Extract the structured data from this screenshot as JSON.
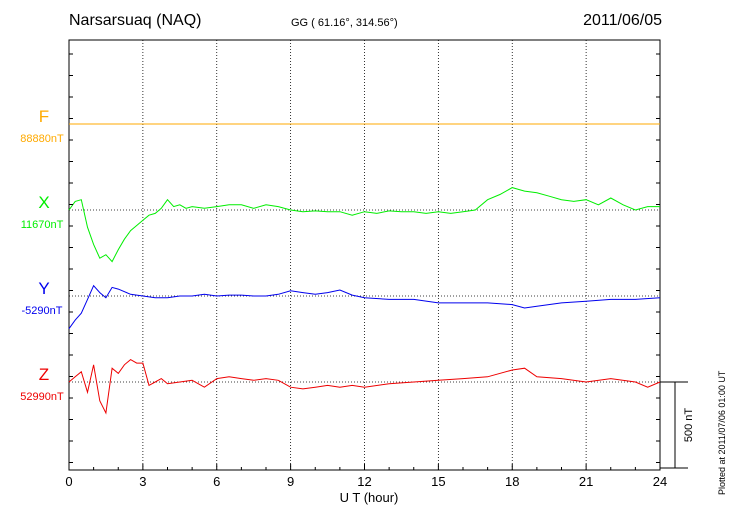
{
  "header": {
    "station": "Narsarsuaq (NAQ)",
    "coords": "GG ( 61.16°, 314.56°)",
    "date": "2011/06/05"
  },
  "footer": {
    "plotted": "Plotted at 2011/07/06 01:00 UT"
  },
  "chart_data": {
    "type": "line",
    "title": "Narsarsuaq (NAQ)",
    "xlabel": "U T (hour)",
    "xlim": [
      0,
      24
    ],
    "xticks": [
      "0",
      "3",
      "6",
      "9",
      "12",
      "15",
      "18",
      "21",
      "24"
    ],
    "grid": true,
    "scale_bar": {
      "label": "500 nT",
      "nT": 500
    },
    "series": [
      {
        "name": "F",
        "baseline_label": "88880nT",
        "color": "#ffaa00",
        "x": [
          0,
          6,
          12,
          18,
          24
        ],
        "y": [
          0,
          0,
          0,
          0,
          0
        ]
      },
      {
        "name": "X",
        "baseline_label": "11670nT",
        "color": "#00ee00",
        "x": [
          0,
          0.25,
          0.5,
          0.75,
          1,
          1.25,
          1.5,
          1.75,
          2,
          2.25,
          2.5,
          2.75,
          3,
          3.25,
          3.5,
          3.75,
          4,
          4.25,
          4.5,
          4.75,
          5,
          5.5,
          6,
          6.5,
          7,
          7.5,
          8,
          8.5,
          9,
          9.5,
          10,
          10.5,
          11,
          11.5,
          12,
          12.5,
          13,
          13.5,
          14,
          14.5,
          15,
          15.5,
          16,
          16.5,
          17,
          17.5,
          18,
          18.25,
          18.5,
          19,
          19.5,
          20,
          20.5,
          21,
          21.5,
          22,
          22.5,
          23,
          23.5,
          24
        ],
        "y": [
          0,
          50,
          60,
          -100,
          -200,
          -280,
          -260,
          -300,
          -230,
          -170,
          -120,
          -90,
          -60,
          -30,
          -20,
          10,
          60,
          20,
          30,
          10,
          20,
          10,
          20,
          30,
          30,
          10,
          30,
          20,
          0,
          -10,
          -5,
          -10,
          -10,
          -30,
          -10,
          -20,
          -5,
          -10,
          -10,
          -20,
          -10,
          -20,
          -10,
          0,
          60,
          90,
          130,
          120,
          110,
          100,
          80,
          60,
          50,
          60,
          30,
          70,
          30,
          0,
          20,
          20
        ]
      },
      {
        "name": "Y",
        "baseline_label": "-5290nT",
        "color": "#0000ee",
        "x": [
          0,
          0.25,
          0.5,
          0.75,
          1,
          1.25,
          1.5,
          1.75,
          2,
          2.5,
          3,
          3.5,
          4,
          4.5,
          5,
          5.5,
          6,
          6.5,
          7,
          7.5,
          8,
          8.5,
          9,
          9.5,
          10,
          10.5,
          11,
          11.5,
          12,
          13,
          14,
          15,
          16,
          17,
          18,
          18.5,
          19,
          20,
          21,
          22,
          23,
          24
        ],
        "y": [
          -190,
          -140,
          -100,
          -20,
          60,
          20,
          -10,
          50,
          40,
          10,
          0,
          -10,
          -10,
          0,
          0,
          10,
          0,
          5,
          5,
          0,
          0,
          10,
          30,
          20,
          10,
          20,
          35,
          5,
          -10,
          -20,
          -20,
          -40,
          -40,
          -40,
          -50,
          -70,
          -60,
          -40,
          -30,
          -20,
          -20,
          -10
        ]
      },
      {
        "name": "Z",
        "baseline_label": "52990nT",
        "color": "#ee0000",
        "x": [
          0,
          0.25,
          0.5,
          0.75,
          1,
          1.25,
          1.5,
          1.75,
          2,
          2.25,
          2.5,
          2.75,
          3,
          3.25,
          3.5,
          3.75,
          4,
          4.5,
          5,
          5.5,
          6,
          6.5,
          7,
          7.5,
          8,
          8.5,
          9,
          9.5,
          10,
          10.5,
          11,
          11.5,
          12,
          13,
          14,
          15,
          16,
          17,
          18,
          18.5,
          19,
          20,
          21,
          22,
          23,
          23.5,
          24
        ],
        "y": [
          0,
          30,
          60,
          -60,
          100,
          -110,
          -180,
          80,
          50,
          100,
          130,
          110,
          110,
          -20,
          0,
          20,
          -10,
          0,
          10,
          -30,
          20,
          30,
          20,
          10,
          20,
          10,
          -30,
          -40,
          -30,
          -20,
          -30,
          -20,
          -30,
          -10,
          0,
          10,
          20,
          30,
          70,
          80,
          30,
          20,
          0,
          20,
          0,
          -30,
          0
        ]
      }
    ]
  }
}
